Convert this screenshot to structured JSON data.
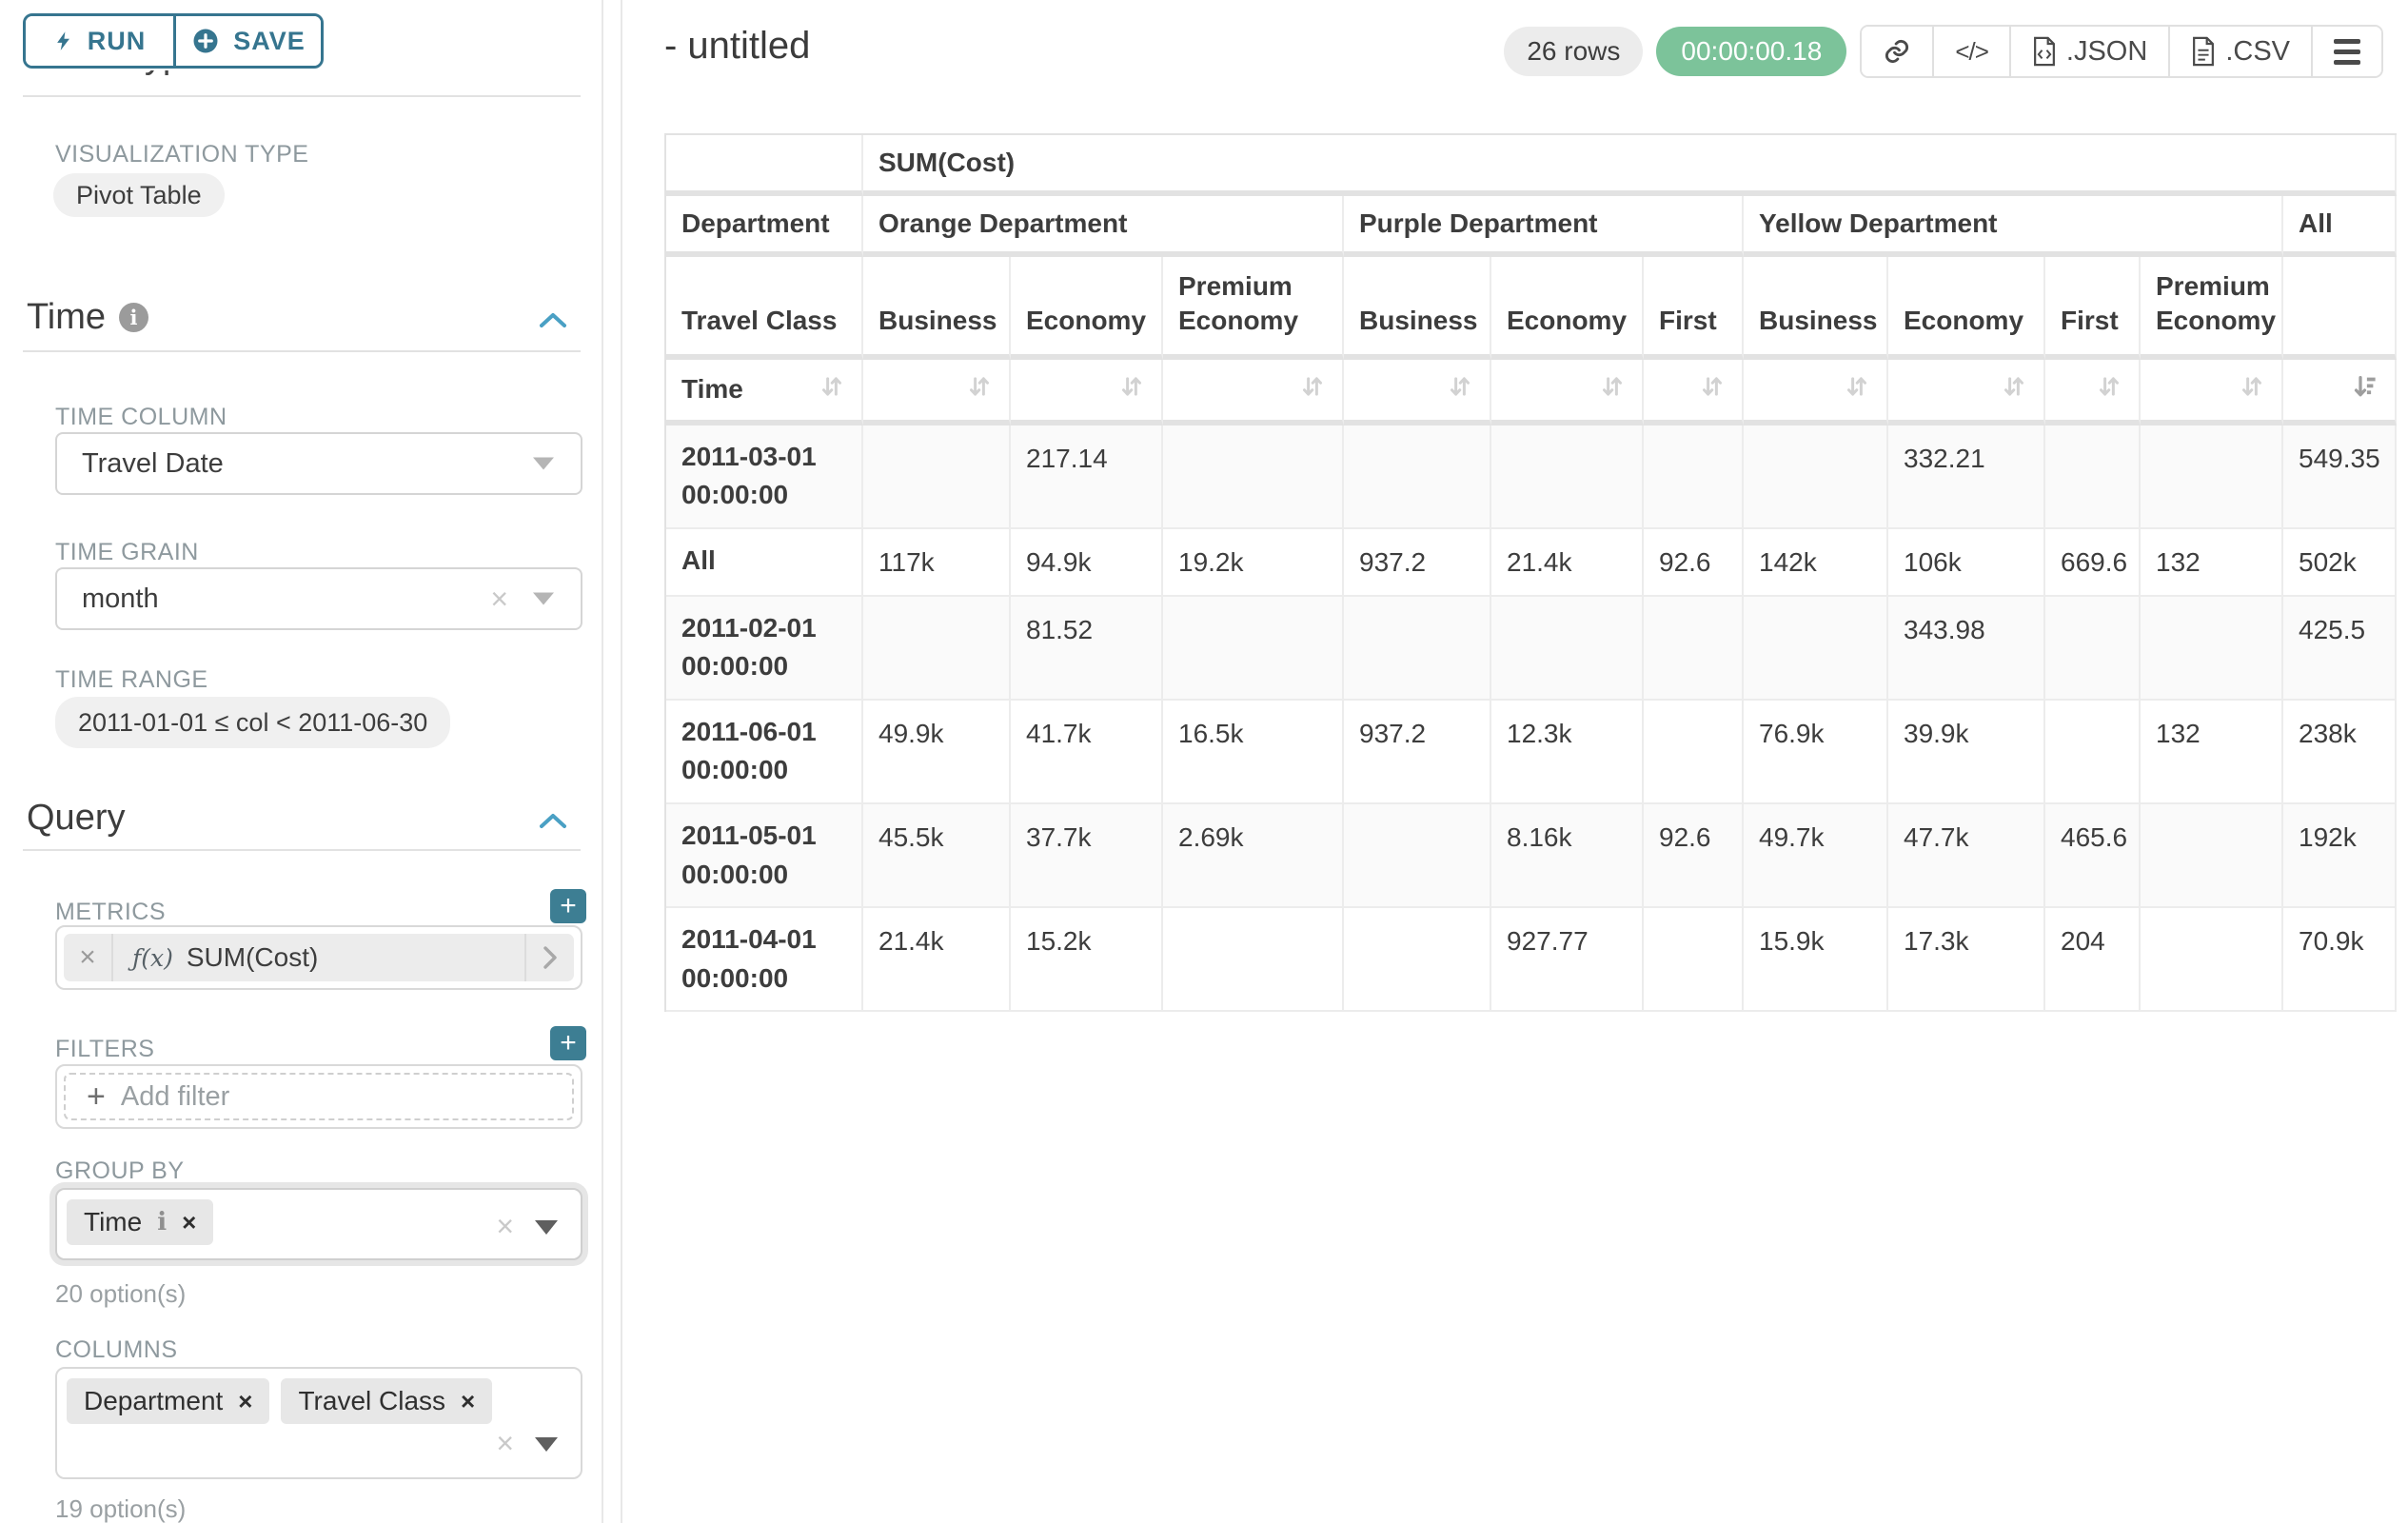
{
  "sidebar": {
    "run_label": "RUN",
    "save_label": "SAVE",
    "chart_type_heading": "Chart Type",
    "viz_type": {
      "label": "VISUALIZATION TYPE",
      "value": "Pivot Table"
    },
    "time_section": {
      "title": "Time",
      "time_column": {
        "label": "TIME COLUMN",
        "value": "Travel Date"
      },
      "time_grain": {
        "label": "TIME GRAIN",
        "value": "month"
      },
      "time_range": {
        "label": "TIME RANGE",
        "value": "2011-01-01 ≤ col < 2011-06-30"
      }
    },
    "query_section": {
      "title": "Query",
      "metrics": {
        "label": "METRICS",
        "fx": "ƒ(x)",
        "value": "SUM(Cost)"
      },
      "filters": {
        "label": "FILTERS",
        "placeholder": "Add filter"
      },
      "group_by": {
        "label": "GROUP BY",
        "chips": [
          "Time"
        ],
        "hint": "20 option(s)"
      },
      "columns": {
        "label": "COLUMNS",
        "chips": [
          "Department",
          "Travel Class"
        ],
        "hint": "19 option(s)"
      }
    }
  },
  "header": {
    "title": "- untitled",
    "row_count": "26 rows",
    "timer": "00:00:00.18",
    "json_label": ".JSON",
    "csv_label": ".CSV"
  },
  "colors": {
    "accent_teal": "#36758f",
    "add_button_teal": "#3d7e93",
    "chevron_blue": "#4aa0c4",
    "timer_green": "#7cc39a"
  },
  "pivot": {
    "metric": "SUM(Cost)",
    "dept_label": "Department",
    "class_label": "Travel Class",
    "time_label": "Time",
    "all_label": "All",
    "groups": [
      {
        "name": "Orange Department",
        "classes": [
          "Business",
          "Economy",
          "Premium Economy"
        ]
      },
      {
        "name": "Purple Department",
        "classes": [
          "Business",
          "Economy",
          "First"
        ]
      },
      {
        "name": "Yellow Department",
        "classes": [
          "Business",
          "Economy",
          "First",
          "Premium Economy"
        ]
      }
    ],
    "rows": [
      {
        "label": "2011-03-01 00:00:00",
        "values": [
          "",
          "217.14",
          "",
          "",
          "",
          "",
          "",
          "332.21",
          "",
          "",
          "549.35"
        ]
      },
      {
        "label": "All",
        "values": [
          "117k",
          "94.9k",
          "19.2k",
          "937.2",
          "21.4k",
          "92.6",
          "142k",
          "106k",
          "669.6",
          "132",
          "502k"
        ]
      },
      {
        "label": "2011-02-01 00:00:00",
        "values": [
          "",
          "81.52",
          "",
          "",
          "",
          "",
          "",
          "343.98",
          "",
          "",
          "425.5"
        ]
      },
      {
        "label": "2011-06-01 00:00:00",
        "values": [
          "49.9k",
          "41.7k",
          "16.5k",
          "937.2",
          "12.3k",
          "",
          "76.9k",
          "39.9k",
          "",
          "132",
          "238k"
        ]
      },
      {
        "label": "2011-05-01 00:00:00",
        "values": [
          "45.5k",
          "37.7k",
          "2.69k",
          "",
          "8.16k",
          "92.6",
          "49.7k",
          "47.7k",
          "465.6",
          "",
          "192k"
        ]
      },
      {
        "label": "2011-04-01 00:00:00",
        "values": [
          "21.4k",
          "15.2k",
          "",
          "",
          "927.77",
          "",
          "15.9k",
          "17.3k",
          "204",
          "",
          "70.9k"
        ]
      }
    ]
  }
}
